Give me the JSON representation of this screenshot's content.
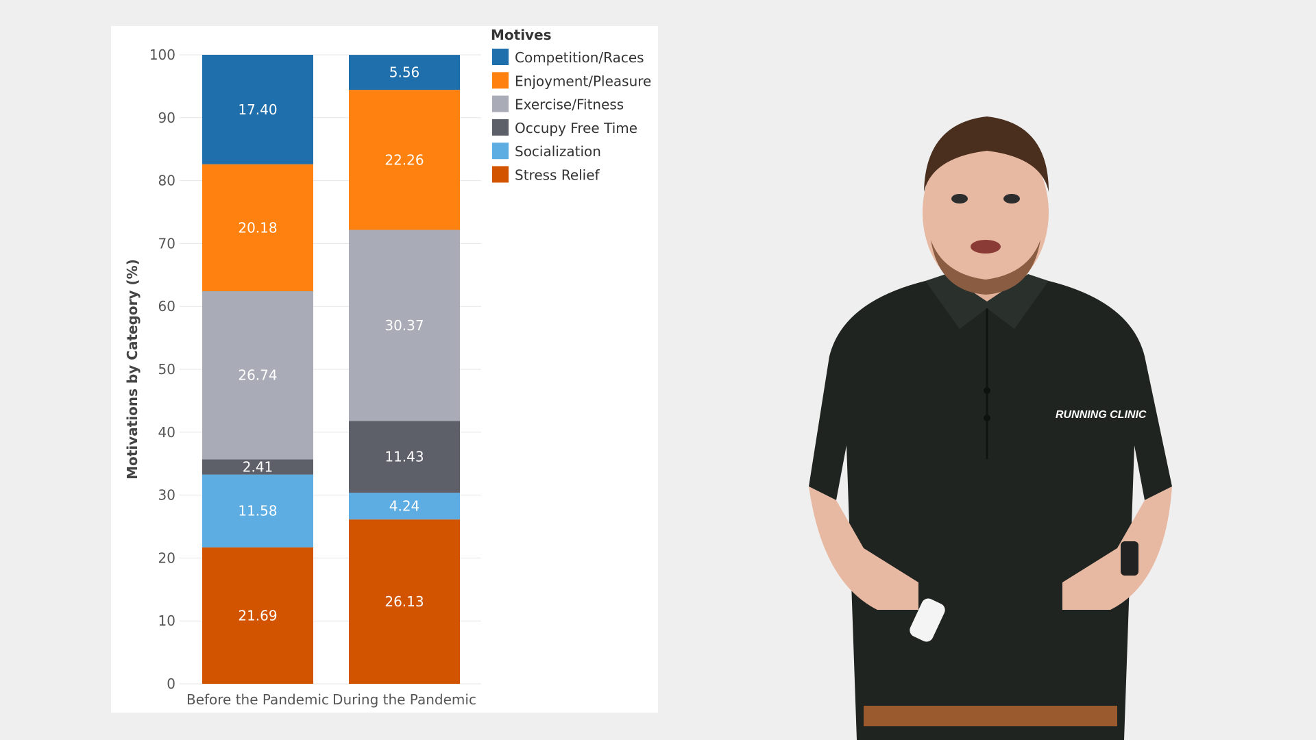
{
  "chart_data": {
    "type": "bar",
    "stacked": true,
    "title": "",
    "xlabel": "",
    "ylabel": "Motivations by Category (%)",
    "ylim": [
      0,
      100
    ],
    "yticks": [
      "0",
      "10",
      "20",
      "30",
      "40",
      "50",
      "60",
      "70",
      "80",
      "90",
      "100"
    ],
    "categories": [
      "Before the Pandemic",
      "During the Pandemic"
    ],
    "legend_title": "Motives",
    "legend_position": "top-right",
    "series": [
      {
        "name": "Stress Relief",
        "color": "#d35400",
        "values": [
          21.69,
          26.13
        ],
        "labels": [
          "21.69",
          "26.13"
        ]
      },
      {
        "name": "Socialization",
        "color": "#5dade2",
        "values": [
          11.58,
          4.24
        ],
        "labels": [
          "11.58",
          "4.24"
        ]
      },
      {
        "name": "Occupy Free Time",
        "color": "#5d5f69",
        "values": [
          2.41,
          11.43
        ],
        "labels": [
          "2.41",
          "11.43"
        ]
      },
      {
        "name": "Exercise/Fitness",
        "color": "#a9abb6",
        "values": [
          26.74,
          30.37
        ],
        "labels": [
          "26.74",
          "30.37"
        ]
      },
      {
        "name": "Enjoyment/Pleasure",
        "color": "#ff8210",
        "values": [
          20.18,
          22.26
        ],
        "labels": [
          "20.18",
          "22.26"
        ]
      },
      {
        "name": "Competition/Races",
        "color": "#1f6fad",
        "values": [
          17.4,
          5.56
        ],
        "labels": [
          "17.40",
          "5.56"
        ]
      }
    ],
    "legend_order": [
      "Competition/Races",
      "Enjoyment/Pleasure",
      "Exercise/Fitness",
      "Occupy Free Time",
      "Socialization",
      "Stress Relief"
    ]
  },
  "presenter": {
    "shirt_logo": "RUNNING CLINIC"
  }
}
